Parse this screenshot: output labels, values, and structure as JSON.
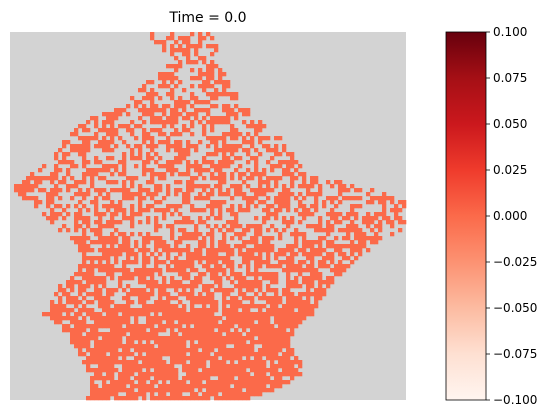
{
  "chart_data": {
    "type": "heatmap",
    "title": "Time = 0.0",
    "grid_on": false,
    "axes_visible": false,
    "grid_shape": {
      "rows": 92,
      "cols": 99
    },
    "background_color": "#d3d3d3",
    "colormap": "Reds",
    "colormap_stops": [
      "#fff5f0",
      "#fee0d2",
      "#fcbba1",
      "#fc9272",
      "#fb6a4a",
      "#ef3b2c",
      "#cb181d",
      "#a50f15",
      "#67000d"
    ],
    "cell_value": 0.0,
    "cell_color": "#fb6a4a",
    "region_note": "all visible cells hold value 0.0; masked (no-data) cells shown as gray",
    "colorbar": {
      "range": [
        -0.1,
        0.1
      ],
      "ticks": [
        0.1,
        0.075,
        0.05,
        0.025,
        0.0,
        -0.025,
        -0.05,
        -0.075,
        -0.1
      ],
      "tick_labels": [
        "0.100",
        "0.075",
        "0.050",
        "0.025",
        "0.000",
        "−0.025",
        "−0.050",
        "−0.075",
        "−0.100"
      ]
    }
  }
}
